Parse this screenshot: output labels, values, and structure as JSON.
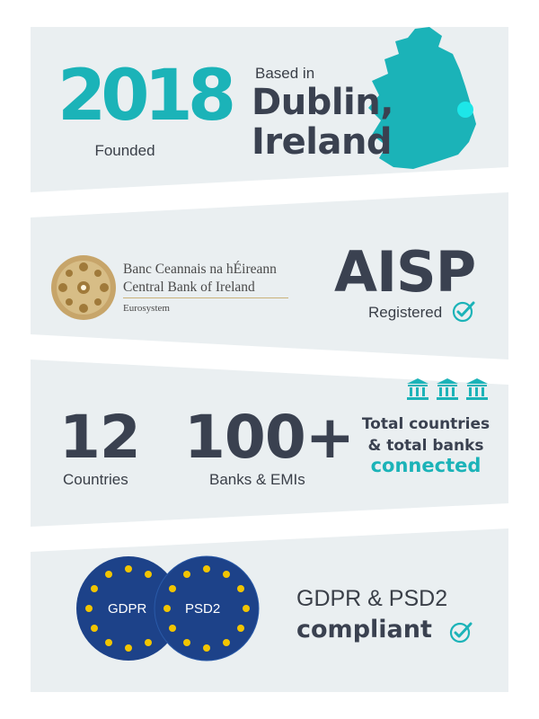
{
  "colors": {
    "accent": "#1bb3b8",
    "text_dark": "#3a4150",
    "panel": "#eaeff1",
    "eu_blue": "#1d4289",
    "eu_star": "#f2c500"
  },
  "section1": {
    "year": "2018",
    "year_caption": "Founded",
    "location_prefix": "Based in",
    "city_line1": "Dublin,",
    "city_line2": "Ireland",
    "map_icon": "ireland-map-icon"
  },
  "section2": {
    "bank_name_irish": "Banc Ceannais na hÉireann",
    "bank_name_english": "Central Bank of Ireland",
    "bank_system": "Eurosystem",
    "license": "AISP",
    "license_status": "Registered",
    "status_icon": "check-circle-icon"
  },
  "section3": {
    "countries_value": "12",
    "countries_label": "Countries",
    "banks_value": "100+",
    "banks_label": "Banks & EMIs",
    "summary_line1": "Total countries",
    "summary_line2": "& total banks",
    "summary_line3": "connected",
    "bank_icon": "bank-building-icon"
  },
  "section4": {
    "badge1": "GDPR",
    "badge2": "PSD2",
    "compliance_line1": "GDPR & PSD2",
    "compliance_line2": "compliant",
    "status_icon": "check-circle-icon"
  }
}
